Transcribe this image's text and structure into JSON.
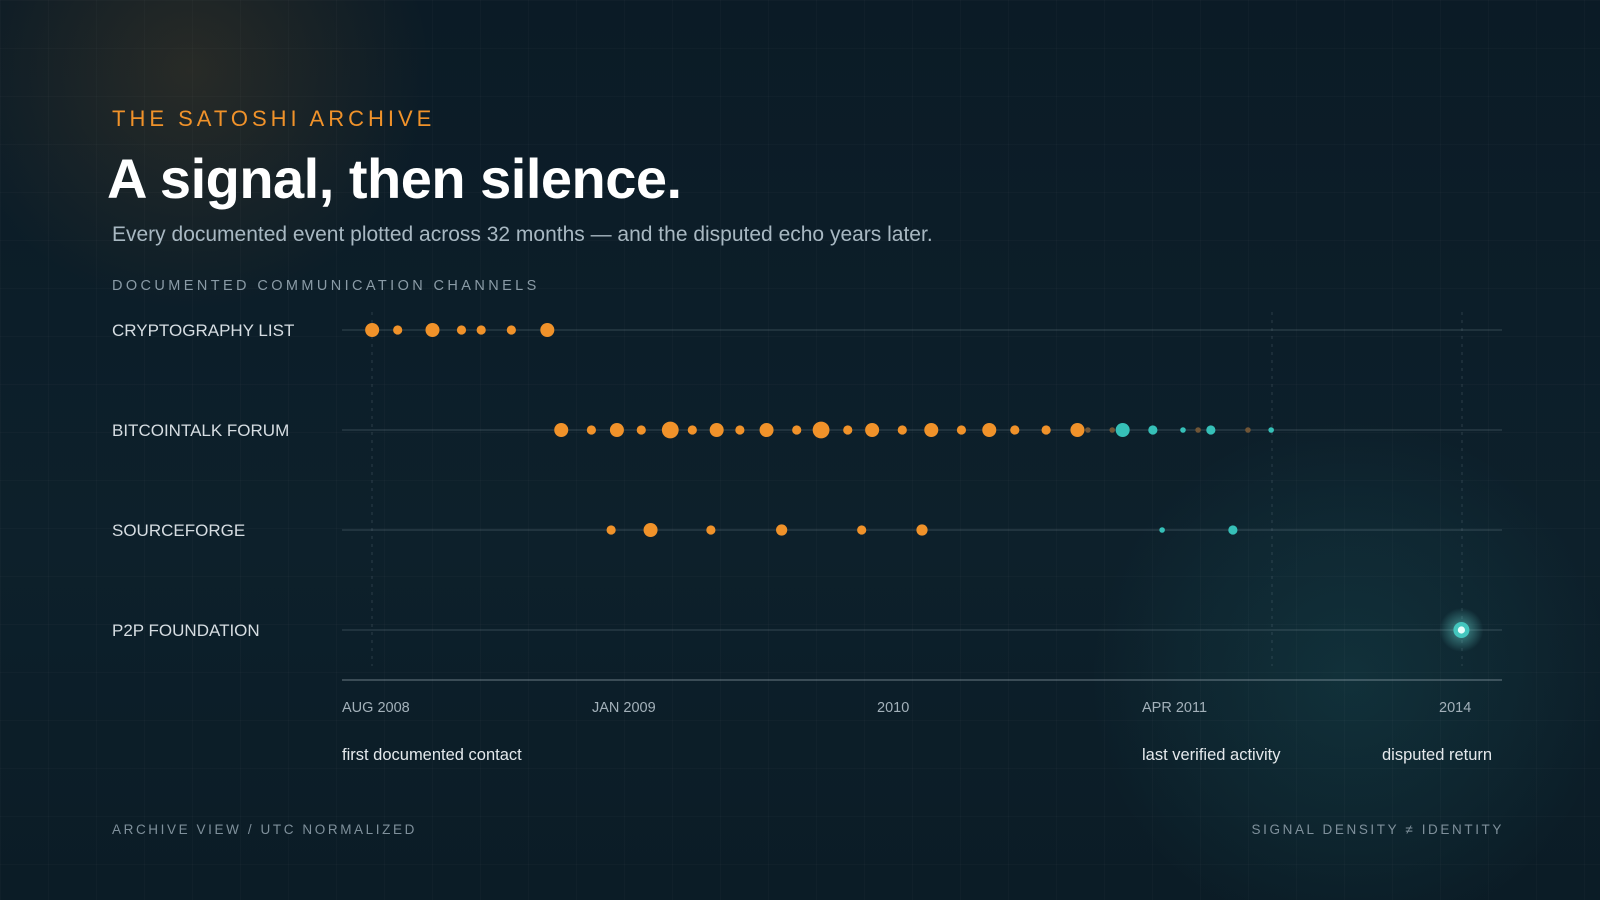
{
  "header": {
    "eyebrow": "THE SATOSHI ARCHIVE",
    "title": "A signal, then silence.",
    "subtitle": "Every documented event plotted across 32 months — and the disputed echo years later.",
    "section_label": "DOCUMENTED COMMUNICATION CHANNELS"
  },
  "footer": {
    "left": "ARCHIVE VIEW / UTC NORMALIZED",
    "right": "SIGNAL DENSITY ≠ IDENTITY"
  },
  "colors": {
    "verified": "#f0922a",
    "late": "#36c0b8",
    "faint": "#7a5a36",
    "disputed": "#6fe6de"
  },
  "chart_data": {
    "type": "scatter",
    "x_scale": "time",
    "lanes": [
      "CRYPTOGRAPHY LIST",
      "BITCOINTALK FORUM",
      "SOURCEFORGE",
      "P2P FOUNDATION"
    ],
    "axis_ticks": [
      {
        "label": "AUG 2008",
        "date": "2008-08-01"
      },
      {
        "label": "JAN 2009",
        "date": "2009-01-01"
      },
      {
        "label": "2010",
        "date": "2010-01-01"
      },
      {
        "label": "APR 2011",
        "date": "2011-04-01"
      },
      {
        "label": "2014",
        "date": "2014-01-01"
      }
    ],
    "annotations": [
      {
        "label": "first documented contact",
        "tone": "normal"
      },
      {
        "label": "last verified activity",
        "tone": "normal"
      },
      {
        "label": "disputed return",
        "tone": "disputed"
      }
    ],
    "series": [
      {
        "lane": "CRYPTOGRAPHY LIST",
        "events": [
          {
            "p": 0.026,
            "s": 3,
            "t": "verified"
          },
          {
            "p": 0.048,
            "s": 2,
            "t": "verified"
          },
          {
            "p": 0.078,
            "s": 3,
            "t": "verified"
          },
          {
            "p": 0.103,
            "s": 2,
            "t": "verified"
          },
          {
            "p": 0.12,
            "s": 2,
            "t": "verified"
          },
          {
            "p": 0.146,
            "s": 2,
            "t": "verified"
          },
          {
            "p": 0.177,
            "s": 3,
            "t": "verified"
          }
        ]
      },
      {
        "lane": "BITCOINTALK FORUM",
        "events": [
          {
            "p": 0.189,
            "s": 3,
            "t": "verified"
          },
          {
            "p": 0.215,
            "s": 2,
            "t": "verified"
          },
          {
            "p": 0.237,
            "s": 3,
            "t": "verified"
          },
          {
            "p": 0.258,
            "s": 2,
            "t": "verified"
          },
          {
            "p": 0.283,
            "s": 4,
            "t": "verified"
          },
          {
            "p": 0.302,
            "s": 2,
            "t": "verified"
          },
          {
            "p": 0.323,
            "s": 3,
            "t": "verified"
          },
          {
            "p": 0.343,
            "s": 2,
            "t": "verified"
          },
          {
            "p": 0.366,
            "s": 3,
            "t": "verified"
          },
          {
            "p": 0.392,
            "s": 2,
            "t": "verified"
          },
          {
            "p": 0.413,
            "s": 4,
            "t": "verified"
          },
          {
            "p": 0.436,
            "s": 2,
            "t": "verified"
          },
          {
            "p": 0.457,
            "s": 3,
            "t": "verified"
          },
          {
            "p": 0.483,
            "s": 2,
            "t": "verified"
          },
          {
            "p": 0.508,
            "s": 3,
            "t": "verified"
          },
          {
            "p": 0.534,
            "s": 2,
            "t": "verified"
          },
          {
            "p": 0.558,
            "s": 3,
            "t": "verified"
          },
          {
            "p": 0.58,
            "s": 2,
            "t": "verified"
          },
          {
            "p": 0.607,
            "s": 2,
            "t": "verified"
          },
          {
            "p": 0.634,
            "s": 3,
            "t": "verified"
          },
          {
            "p": 0.643,
            "s": 1,
            "t": "faint"
          },
          {
            "p": 0.664,
            "s": 1,
            "t": "faint"
          },
          {
            "p": 0.673,
            "s": 3,
            "t": "late"
          },
          {
            "p": 0.699,
            "s": 2,
            "t": "late"
          },
          {
            "p": 0.725,
            "s": 1,
            "t": "late"
          },
          {
            "p": 0.738,
            "s": 1,
            "t": "faint"
          },
          {
            "p": 0.749,
            "s": 2,
            "t": "late"
          },
          {
            "p": 0.781,
            "s": 1,
            "t": "faint"
          },
          {
            "p": 0.801,
            "s": 1,
            "t": "late"
          }
        ]
      },
      {
        "lane": "SOURCEFORGE",
        "events": [
          {
            "p": 0.232,
            "s": 2,
            "t": "verified"
          },
          {
            "p": 0.266,
            "s": 3,
            "t": "verified"
          },
          {
            "p": 0.318,
            "s": 2,
            "t": "verified"
          },
          {
            "p": 0.379,
            "s": 2.5,
            "t": "verified"
          },
          {
            "p": 0.448,
            "s": 2,
            "t": "verified"
          },
          {
            "p": 0.5,
            "s": 2.5,
            "t": "verified"
          },
          {
            "p": 0.707,
            "s": 1,
            "t": "late"
          },
          {
            "p": 0.768,
            "s": 2,
            "t": "late"
          }
        ]
      },
      {
        "lane": "P2P FOUNDATION",
        "events": [
          {
            "p": 0.965,
            "s": 3,
            "t": "disputed"
          }
        ]
      }
    ]
  }
}
